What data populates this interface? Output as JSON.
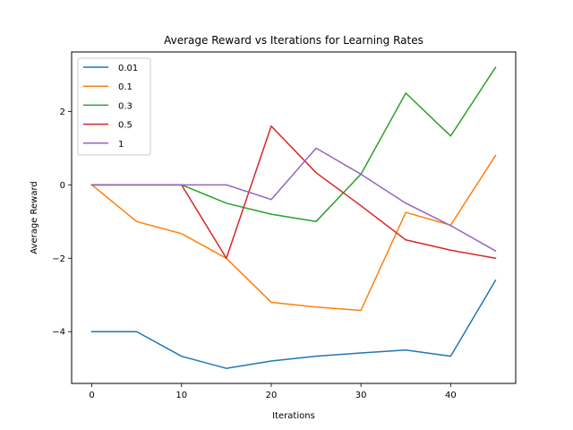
{
  "chart_data": {
    "type": "line",
    "title": "Average Reward vs Iterations for Learning Rates",
    "xlabel": "Iterations",
    "ylabel": "Average Reward",
    "xlim": [
      -2.25,
      47.25
    ],
    "ylim": [
      -5.41,
      3.62
    ],
    "xticks": [
      0,
      10,
      20,
      30,
      40
    ],
    "yticks": [
      -4,
      -2,
      0,
      2
    ],
    "ytick_labels": [
      "−4",
      "−2",
      "0",
      "2"
    ],
    "x": [
      0,
      5,
      10,
      15,
      20,
      25,
      30,
      35,
      40,
      45
    ],
    "grid": false,
    "legend_position": "top-left",
    "series": [
      {
        "name": "0.01",
        "color": "#1f77b4",
        "values": [
          -4.0,
          -4.0,
          -4.67,
          -5.0,
          -4.8,
          -4.67,
          -4.58,
          -4.5,
          -4.67,
          -2.6
        ]
      },
      {
        "name": "0.1",
        "color": "#ff7f0e",
        "values": [
          0.0,
          -1.0,
          -1.33,
          -2.0,
          -3.2,
          -3.33,
          -3.42,
          -0.75,
          -1.1,
          0.8
        ]
      },
      {
        "name": "0.3",
        "color": "#2ca02c",
        "values": [
          0.0,
          0.0,
          0.0,
          -0.5,
          -0.8,
          -1.0,
          0.29,
          2.5,
          1.33,
          3.2
        ]
      },
      {
        "name": "0.5",
        "color": "#d62728",
        "values": [
          0.0,
          0.0,
          0.0,
          -2.0,
          1.6,
          0.33,
          -0.57,
          -1.5,
          -1.78,
          -2.0
        ]
      },
      {
        "name": "1",
        "color": "#9467bd",
        "values": [
          0.0,
          0.0,
          0.0,
          0.0,
          -0.4,
          1.0,
          0.29,
          -0.5,
          -1.11,
          -1.8
        ]
      }
    ]
  }
}
